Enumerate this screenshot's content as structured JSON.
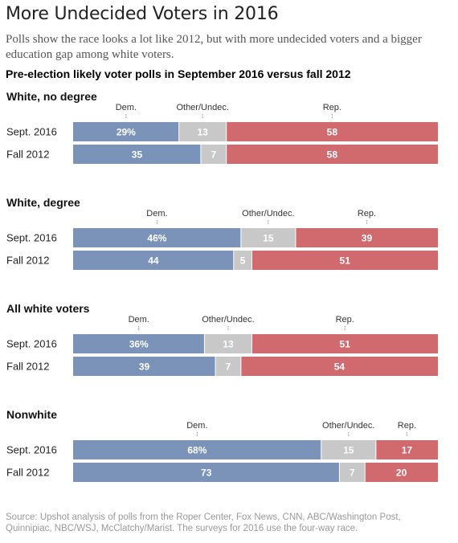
{
  "title": "More Undecided Voters in 2016",
  "subtitle": "Polls show the race looks a lot like 2012, but with more undecided voters and a bigger education gap among white voters.",
  "chart_heading": "Pre-election likely voter polls in September 2016 versus fall 2012",
  "source": "Source: Upshot analysis of polls from the Roper Center, Fox News, CNN, ABC/Washington Post, Quinnipiac, NBC/WSJ, McClatchy/Marist. The surveys for 2016 use the four-way race.",
  "colors": {
    "dem": "#7b93b8",
    "other": "#c8c8c8",
    "rep": "#d06a6e"
  },
  "chart_data": [
    {
      "type": "bar",
      "stacked": true,
      "orientation": "horizontal",
      "title": "White, no degree",
      "categories": [
        "Sept. 2016",
        "Fall 2012"
      ],
      "series": [
        {
          "name": "Dem.",
          "values": [
            29,
            35
          ],
          "labels": [
            "29%",
            "35"
          ]
        },
        {
          "name": "Other/Undec.",
          "values": [
            13,
            7
          ],
          "labels": [
            "13",
            "7"
          ]
        },
        {
          "name": "Rep.",
          "values": [
            58,
            58
          ],
          "labels": [
            "58",
            "58"
          ]
        }
      ]
    },
    {
      "type": "bar",
      "stacked": true,
      "orientation": "horizontal",
      "title": "White, degree",
      "categories": [
        "Sept. 2016",
        "Fall 2012"
      ],
      "series": [
        {
          "name": "Dem.",
          "values": [
            46,
            44
          ],
          "labels": [
            "46%",
            "44"
          ]
        },
        {
          "name": "Other/Undec.",
          "values": [
            15,
            5
          ],
          "labels": [
            "15",
            "5"
          ]
        },
        {
          "name": "Rep.",
          "values": [
            39,
            51
          ],
          "labels": [
            "39",
            "51"
          ]
        }
      ]
    },
    {
      "type": "bar",
      "stacked": true,
      "orientation": "horizontal",
      "title": "All white voters",
      "categories": [
        "Sept. 2016",
        "Fall 2012"
      ],
      "series": [
        {
          "name": "Dem.",
          "values": [
            36,
            39
          ],
          "labels": [
            "36%",
            "39"
          ]
        },
        {
          "name": "Other/Undec.",
          "values": [
            13,
            7
          ],
          "labels": [
            "13",
            "7"
          ]
        },
        {
          "name": "Rep.",
          "values": [
            51,
            54
          ],
          "labels": [
            "51",
            "54"
          ]
        }
      ]
    },
    {
      "type": "bar",
      "stacked": true,
      "orientation": "horizontal",
      "title": "Nonwhite",
      "categories": [
        "Sept. 2016",
        "Fall 2012"
      ],
      "series": [
        {
          "name": "Dem.",
          "values": [
            68,
            73
          ],
          "labels": [
            "68%",
            "73"
          ]
        },
        {
          "name": "Other/Undec.",
          "values": [
            15,
            7
          ],
          "labels": [
            "15",
            "7"
          ]
        },
        {
          "name": "Rep.",
          "values": [
            17,
            20
          ],
          "labels": [
            "17",
            "20"
          ]
        }
      ]
    }
  ]
}
